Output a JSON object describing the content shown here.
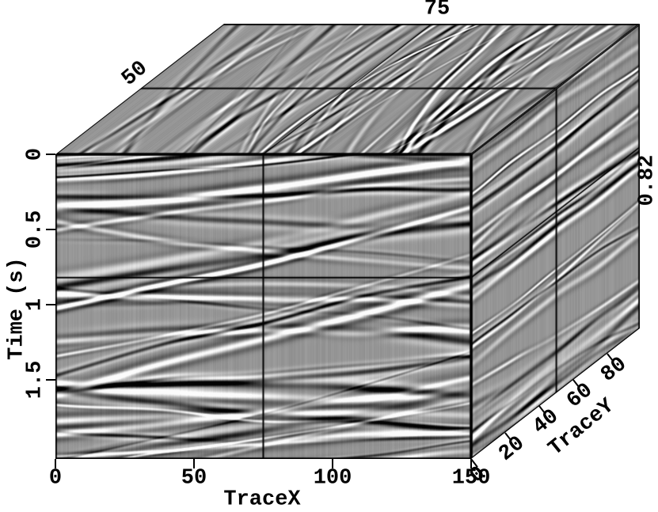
{
  "figure": {
    "background": "#ffffff",
    "line_color": "#000000",
    "text_color": "#000000",
    "base_gray": "#969696"
  },
  "chart_data": {
    "type": "heatmap",
    "subtype": "3d-seismic-cube",
    "title": "",
    "description": "3D seismic amplitude volume shown as three orthogonal grayscale slices (front: TraceX vs Time, top: time slice TraceX vs TraceY, right side: TraceY vs Time) with black cross-hair frame lines marking the slice positions",
    "colormap": "grayscale",
    "axes": {
      "traceX": {
        "label": "TraceX",
        "range": [
          0,
          150
        ],
        "ticks": [
          "0",
          "50",
          "100",
          "150"
        ],
        "tick_values": [
          0,
          50,
          100,
          150
        ],
        "position": "bottom-front"
      },
      "traceY": {
        "label": "TraceY",
        "range": [
          0,
          99
        ],
        "ticks": [
          "0",
          "20",
          "40",
          "60",
          "80"
        ],
        "tick_values": [
          0,
          20,
          40,
          60,
          80
        ],
        "position": "bottom-right-receding"
      },
      "time": {
        "label": "Time (s)",
        "range": [
          0,
          2.03
        ],
        "ticks": [
          "0",
          "0.5",
          "1",
          "1.5"
        ],
        "tick_values": [
          0,
          0.5,
          1,
          1.5
        ],
        "position": "left-front"
      }
    },
    "frames": {
      "traceX": 75,
      "traceY": 50,
      "time": 0.82
    },
    "frame_labels": {
      "traceX": "75",
      "traceY": "50",
      "time": "0.82"
    },
    "faces": [
      {
        "name": "front",
        "axes": [
          "TraceX",
          "Time"
        ],
        "content": "inline slice at TraceY=50"
      },
      {
        "name": "top",
        "axes": [
          "TraceX",
          "TraceY"
        ],
        "content": "time slice at Time=0.82 s"
      },
      {
        "name": "side",
        "axes": [
          "TraceY",
          "Time"
        ],
        "content": "crossline slice at TraceX=75"
      }
    ]
  }
}
